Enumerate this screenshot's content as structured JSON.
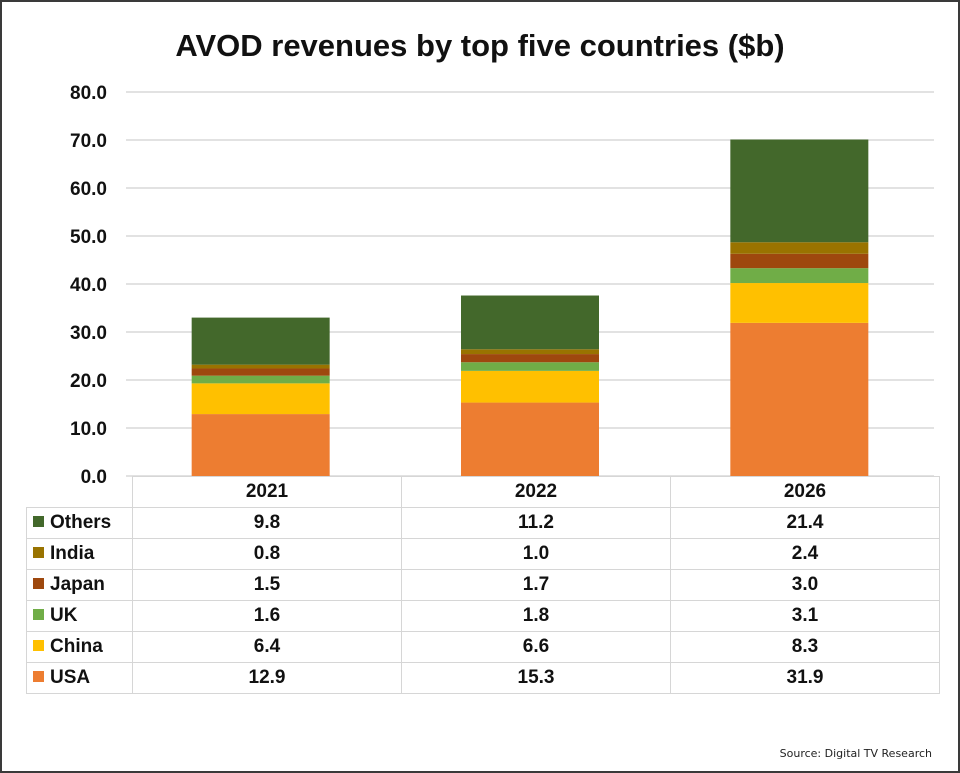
{
  "chart_data": {
    "type": "bar",
    "stacked": true,
    "title": "AVOD revenues by top five countries ($b)",
    "xlabel": "",
    "ylabel": "",
    "ylim": [
      0,
      80
    ],
    "yticks": [
      "0.0",
      "10.0",
      "20.0",
      "30.0",
      "40.0",
      "50.0",
      "60.0",
      "70.0",
      "80.0"
    ],
    "ytick_values": [
      0,
      10,
      20,
      30,
      40,
      50,
      60,
      70,
      80
    ],
    "grid": true,
    "legend": "data-table-left",
    "categories": [
      "2021",
      "2022",
      "2026"
    ],
    "series": [
      {
        "name": "USA",
        "color": "#ED7D31",
        "values": [
          12.9,
          15.3,
          31.9
        ],
        "labels": [
          "12.9",
          "15.3",
          "31.9"
        ]
      },
      {
        "name": "China",
        "color": "#FFC000",
        "values": [
          6.4,
          6.6,
          8.3
        ],
        "labels": [
          "6.4",
          "6.6",
          "8.3"
        ]
      },
      {
        "name": "UK",
        "color": "#70AD47",
        "values": [
          1.6,
          1.8,
          3.1
        ],
        "labels": [
          "1.6",
          "1.8",
          "3.1"
        ]
      },
      {
        "name": "Japan",
        "color": "#9E480E",
        "values": [
          1.5,
          1.7,
          3.0
        ],
        "labels": [
          "1.5",
          "1.7",
          "3.0"
        ]
      },
      {
        "name": "India",
        "color": "#997300",
        "values": [
          0.8,
          1.0,
          2.4
        ],
        "labels": [
          "0.8",
          "1.0",
          "2.4"
        ]
      },
      {
        "name": "Others",
        "color": "#43682B",
        "values": [
          9.8,
          11.2,
          21.4
        ],
        "labels": [
          "9.8",
          "11.2",
          "21.4"
        ]
      }
    ],
    "table_row_order": [
      "Others",
      "India",
      "Japan",
      "UK",
      "China",
      "USA"
    ]
  },
  "source": "Source: Digital TV Research"
}
